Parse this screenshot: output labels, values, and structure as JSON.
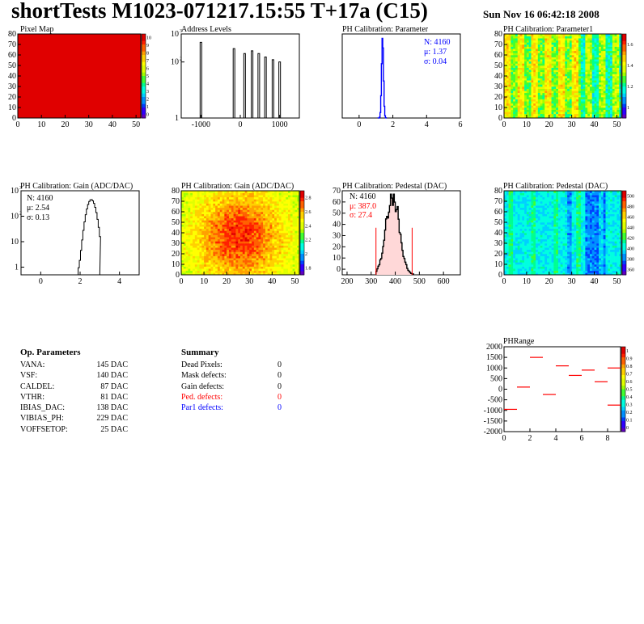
{
  "header": {
    "title": "shortTests M1023-071217.15:55 T+17a (C15)",
    "timestamp": "Sun Nov 16 06:42:18 2008"
  },
  "palette": {
    "rainbow": [
      "#6000c0",
      "#3000ff",
      "#0040ff",
      "#0090ff",
      "#00d0ff",
      "#00ffe0",
      "#00ff90",
      "#40ff30",
      "#a0ff00",
      "#e0ff00",
      "#ffff00",
      "#ffd000",
      "#ffa000",
      "#ff6000",
      "#ff2000",
      "#e00000"
    ],
    "accent_red": "#ff0000",
    "accent_blue": "#0000ff"
  },
  "chart_data": [
    {
      "id": "pixel-map",
      "type": "heatmap",
      "title": "Pixel Map",
      "xlim": [
        0,
        52
      ],
      "ylim": [
        0,
        80
      ],
      "xticks": [
        "0",
        "10",
        "20",
        "30",
        "40",
        "50"
      ],
      "yticks": [
        "0",
        "10",
        "20",
        "30",
        "40",
        "50",
        "60",
        "70",
        "80"
      ],
      "fill_value": 10,
      "zlim": [
        0,
        10
      ],
      "zticks": [
        "10",
        "9",
        "8",
        "7",
        "6",
        "5",
        "4",
        "3",
        "2",
        "1",
        "0"
      ],
      "note": "uniform map, all pixels at maximum"
    },
    {
      "id": "address-levels",
      "type": "histogram",
      "title": "Address Levels",
      "xlim": [
        -1500,
        1500
      ],
      "yscale": "log",
      "ylim": [
        1,
        1000
      ],
      "xticks": [
        "-1000",
        "0",
        "1000"
      ],
      "yticks": [
        "10",
        "10",
        "1"
      ],
      "ytick_exp": [
        "3",
        "2",
        ""
      ],
      "peaks": [
        {
          "x": -1000,
          "y": 500
        },
        {
          "x": -160,
          "y": 300
        },
        {
          "x": 110,
          "y": 200
        },
        {
          "x": 300,
          "y": 250
        },
        {
          "x": 470,
          "y": 200
        },
        {
          "x": 640,
          "y": 150
        },
        {
          "x": 830,
          "y": 120
        },
        {
          "x": 1000,
          "y": 100
        }
      ]
    },
    {
      "id": "ph-calib-parameter",
      "type": "histogram",
      "title": "PH Calibration: Parameter",
      "xlim": [
        -1,
        6
      ],
      "ylim": [
        0,
        800
      ],
      "xticks": [
        "0",
        "2",
        "4",
        "6"
      ],
      "stats": {
        "N": "N: 4160",
        "mean": "μ: 1.37",
        "sigma": "σ: 0.04"
      },
      "mean": 1.37,
      "sigma": 0.04,
      "peak": 770
    },
    {
      "id": "ph-calib-parameter1",
      "type": "heatmap",
      "title": "PH Calibration: Parameter1",
      "xlim": [
        0,
        52
      ],
      "ylim": [
        0,
        80
      ],
      "xticks": [
        "0",
        "10",
        "20",
        "30",
        "40",
        "50"
      ],
      "yticks": [
        "0",
        "10",
        "20",
        "30",
        "40",
        "50",
        "60",
        "70",
        "80"
      ],
      "zticks": [
        "1.6",
        "1.4",
        "1.2",
        "1"
      ]
    },
    {
      "id": "ph-calib-gain-hist",
      "type": "histogram",
      "title": "PH Calibration: Gain (ADC/DAC)",
      "xlim": [
        -1,
        5
      ],
      "yscale": "log",
      "ylim": [
        0.5,
        1000
      ],
      "xticks": [
        "0",
        "2",
        "4"
      ],
      "yticks": [
        "10",
        "10",
        "10",
        "1"
      ],
      "ytick_exp": [
        "3",
        "2",
        "",
        ""
      ],
      "stats": {
        "N": "N: 4160",
        "mean": "μ: 2.54",
        "sigma": "σ: 0.13"
      },
      "mean": 2.54,
      "sigma": 0.13,
      "peak": 450
    },
    {
      "id": "ph-calib-gain-map",
      "type": "heatmap",
      "title": "PH Calibration: Gain (ADC/DAC)",
      "xlim": [
        0,
        52
      ],
      "ylim": [
        0,
        80
      ],
      "xticks": [
        "0",
        "10",
        "20",
        "30",
        "40",
        "50"
      ],
      "yticks": [
        "0",
        "10",
        "20",
        "30",
        "40",
        "50",
        "60",
        "70",
        "80"
      ],
      "zticks": [
        "2.8",
        "2.6",
        "2.4",
        "2.2",
        "2",
        "1.8"
      ]
    },
    {
      "id": "ph-calib-pedestal-hist",
      "type": "histogram",
      "title": "PH Calibration: Pedestal (DAC)",
      "xlim": [
        180,
        670
      ],
      "ylim": [
        0,
        75
      ],
      "xticks": [
        "200",
        "300",
        "400",
        "500",
        "600"
      ],
      "yticks": [
        "0",
        "10",
        "20",
        "30",
        "40",
        "50",
        "60",
        "70"
      ],
      "stats": {
        "N": "N: 4160",
        "mean": "μ: 387.0",
        "sigma": "σ: 27.4"
      },
      "mean": 387.0,
      "sigma": 27.4,
      "peak": 72,
      "cut_low": 320,
      "cut_high": 470
    },
    {
      "id": "ph-calib-pedestal-map",
      "type": "heatmap",
      "title": "PH Calibration: Pedestal (DAC)",
      "xlim": [
        0,
        52
      ],
      "ylim": [
        0,
        80
      ],
      "xticks": [
        "0",
        "10",
        "20",
        "30",
        "40",
        "50"
      ],
      "yticks": [
        "0",
        "10",
        "20",
        "30",
        "40",
        "50",
        "60",
        "70",
        "80"
      ],
      "zticks": [
        "500",
        "480",
        "460",
        "440",
        "420",
        "400",
        "380",
        "360"
      ]
    },
    {
      "id": "phrange",
      "type": "scatter",
      "title": "PHRange",
      "xlim": [
        0,
        9
      ],
      "ylim": [
        -2000,
        2000
      ],
      "xticks": [
        "0",
        "2",
        "4",
        "6",
        "8"
      ],
      "yticks": [
        "2000",
        "1500",
        "1000",
        "500",
        "0",
        "-500",
        "-1000",
        "-1500",
        "-2000"
      ],
      "zticks": [
        "1",
        "0.9",
        "0.8",
        "0.7",
        "0.6",
        "0.5",
        "0.4",
        "0.3",
        "0.2",
        "0.1",
        "0"
      ],
      "segments": [
        {
          "x": 0,
          "y": -950
        },
        {
          "x": 1,
          "y": 100
        },
        {
          "x": 2,
          "y": 1500
        },
        {
          "x": 3,
          "y": -250
        },
        {
          "x": 4,
          "y": 1100
        },
        {
          "x": 5,
          "y": 650
        },
        {
          "x": 6,
          "y": 900
        },
        {
          "x": 7,
          "y": 350
        },
        {
          "x": 8,
          "y": 1000
        },
        {
          "x": 8,
          "y": -750
        }
      ]
    }
  ],
  "op_parameters": {
    "title": "Op. Parameters",
    "rows": [
      {
        "name": "VANA:",
        "value": "145 DAC"
      },
      {
        "name": "VSF:",
        "value": "140 DAC"
      },
      {
        "name": "CALDEL:",
        "value": "87 DAC"
      },
      {
        "name": "VTHR:",
        "value": "81 DAC"
      },
      {
        "name": "IBIAS_DAC:",
        "value": "138 DAC"
      },
      {
        "name": "VIBIAS_PH:",
        "value": "229 DAC"
      },
      {
        "name": "VOFFSETOP:",
        "value": "25 DAC"
      }
    ]
  },
  "summary": {
    "title": "Summary",
    "rows": [
      {
        "name": "Dead Pixels:",
        "value": "0",
        "color": "#000000"
      },
      {
        "name": "Mask defects:",
        "value": "0",
        "color": "#000000"
      },
      {
        "name": "Gain defects:",
        "value": "0",
        "color": "#000000"
      },
      {
        "name": "Ped. defects:",
        "value": "0",
        "color": "#ff0000"
      },
      {
        "name": "Par1 defects:",
        "value": "0",
        "color": "#0000ff"
      }
    ]
  }
}
